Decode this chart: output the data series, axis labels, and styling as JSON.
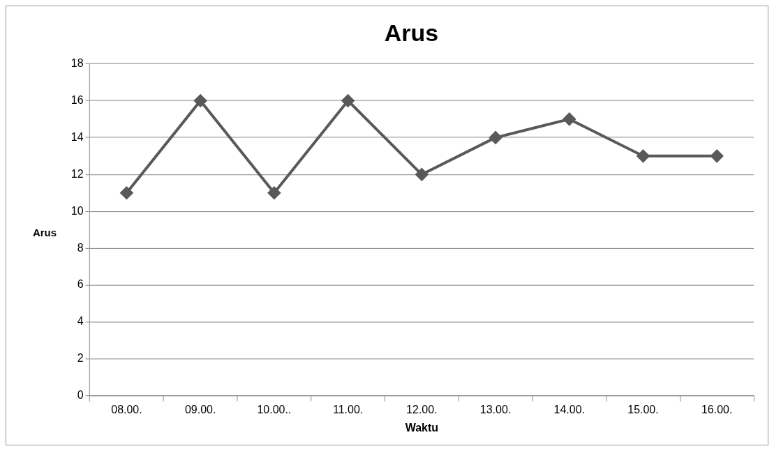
{
  "chart_data": {
    "type": "line",
    "title": "Arus",
    "xlabel": "Waktu",
    "ylabel": "Arus",
    "categories": [
      "08.00.",
      "09.00.",
      "10.00..",
      "11.00.",
      "12.00.",
      "13.00.",
      "14.00.",
      "15.00.",
      "16.00."
    ],
    "series": [
      {
        "color": "#595959",
        "values": [
          11,
          16,
          11,
          16,
          12,
          14,
          15,
          13,
          13
        ]
      }
    ],
    "ylim": [
      0,
      18
    ],
    "yticks": [
      0,
      2,
      4,
      6,
      8,
      10,
      12,
      14,
      16,
      18
    ],
    "grid": "y",
    "legend": false,
    "marker": "diamond",
    "line_style": "solid"
  }
}
